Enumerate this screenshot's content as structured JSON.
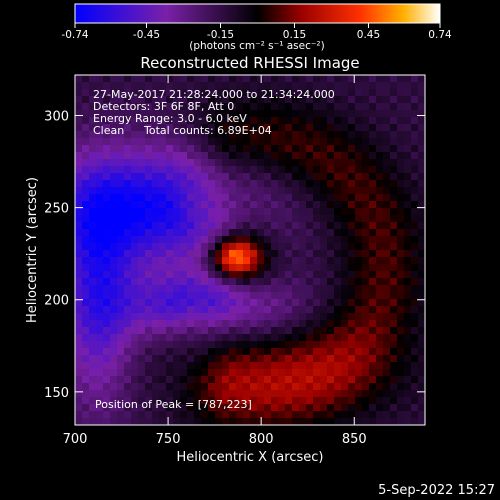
{
  "chart_data": {
    "type": "heatmap",
    "title": "Reconstructed RHESSI Image",
    "xlabel": "Heliocentric X (arcsec)",
    "ylabel": "Heliocentric Y (arcsec)",
    "xlim": [
      700,
      888
    ],
    "ylim": [
      132,
      322
    ],
    "x_ticks": [
      700,
      750,
      800,
      850
    ],
    "y_ticks": [
      150,
      200,
      250,
      300
    ],
    "colorbar": {
      "min": -0.74,
      "max": 0.74,
      "ticks": [
        "-0.74",
        "-0.45",
        "-0.15",
        "0.15",
        "0.45",
        "0.74"
      ],
      "tick_values": [
        -0.74,
        -0.45,
        -0.15,
        0.15,
        0.45,
        0.74
      ],
      "unit_label": "(photons cm⁻² s⁻¹ asec⁻²)"
    },
    "annotations": {
      "time_range": "27-May-2017 21:28:24.000 to 21:34:24.000",
      "detectors": "Detectors: 3F 6F 8F, Att 0",
      "energy_range": "Energy Range: 3.0 - 6.0 keV",
      "clean": "Clean",
      "total_counts": "Total counts: 6.89E+04",
      "peak_position": "Position of Peak = [787,223]"
    },
    "peak": [
      787,
      223
    ],
    "timestamp": "5-Sep-2022 15:27",
    "image_model": {
      "components": [
        {
          "kind": "gaussian",
          "x": 786,
          "y": 223,
          "sx": 9,
          "sy": 8,
          "amp": 0.74
        },
        {
          "kind": "ring",
          "cx": 798,
          "cy": 218,
          "r": 68,
          "width": 17,
          "amp": 0.22
        },
        {
          "kind": "ring",
          "cx": 770,
          "cy": 222,
          "r": 30,
          "width": 10,
          "amp": 0.12
        },
        {
          "kind": "gaussian",
          "x": 815,
          "y": 160,
          "sx": 45,
          "sy": 18,
          "amp": 0.16
        },
        {
          "kind": "gaussian",
          "x": 740,
          "y": 250,
          "sx": 40,
          "sy": 22,
          "amp": -0.55
        },
        {
          "kind": "gaussian",
          "x": 770,
          "y": 197,
          "sx": 30,
          "sy": 12,
          "amp": -0.45
        },
        {
          "kind": "gaussian",
          "x": 712,
          "y": 200,
          "sx": 14,
          "sy": 40,
          "amp": -0.4
        }
      ],
      "background": -0.14,
      "ripple_amp": 0.05
    }
  }
}
